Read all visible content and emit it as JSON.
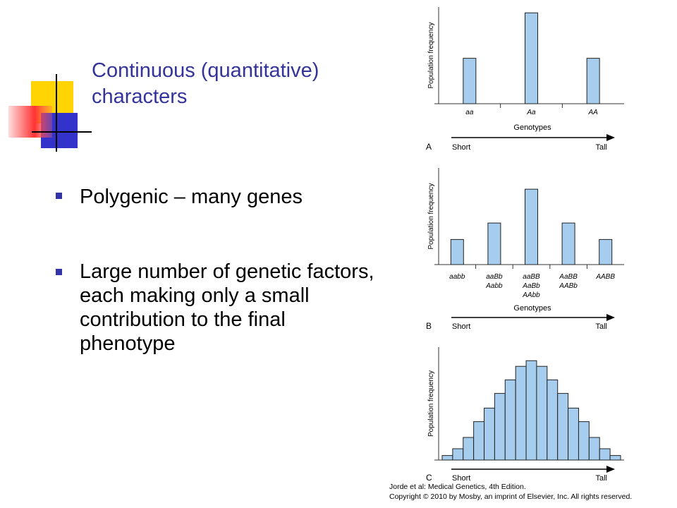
{
  "slide": {
    "title_lines": [
      "Continuous (quantitative)",
      "characters"
    ],
    "bullets": [
      "Polygenic – many genes",
      "Large number of genetic factors, each making only a small contribution to the final phenotype"
    ],
    "credit_lines": [
      "Jorde et al: Medical Genetics, 4th Edition.",
      "Copyright © 2010 by Mosby, an imprint of Elsevier, Inc. All rights reserved."
    ]
  },
  "chart_data": [
    {
      "type": "bar",
      "panel": "A",
      "ylabel": "Population frequency",
      "xlabel": "Genotypes",
      "arrow_start": "Short",
      "arrow_end": "Tall",
      "color": "#a6cdee",
      "categories": [
        [
          "aa"
        ],
        [
          "Aa"
        ],
        [
          "AA"
        ]
      ],
      "values": [
        47,
        94,
        47
      ],
      "ylim": [
        0,
        100
      ]
    },
    {
      "type": "bar",
      "panel": "B",
      "ylabel": "Population frequency",
      "xlabel": "Genotypes",
      "arrow_start": "Short",
      "arrow_end": "Tall",
      "color": "#a6cdee",
      "categories": [
        [
          "aabb"
        ],
        [
          "aaBb",
          "Aabb"
        ],
        [
          "aaBB",
          "AaBb",
          "AAbb"
        ],
        [
          "AaBB",
          "AABb"
        ],
        [
          "AABB"
        ]
      ],
      "values": [
        26,
        43,
        78,
        43,
        26
      ],
      "ylim": [
        0,
        100
      ]
    },
    {
      "type": "histogram",
      "panel": "C",
      "ylabel": "Population frequency",
      "arrow_start": "Short",
      "arrow_end": "Tall",
      "color": "#a6cdee",
      "values": [
        4,
        10,
        20,
        34,
        46,
        59,
        71,
        83,
        88,
        83,
        71,
        59,
        46,
        34,
        20,
        10,
        4
      ],
      "ylim": [
        0,
        100
      ]
    }
  ]
}
